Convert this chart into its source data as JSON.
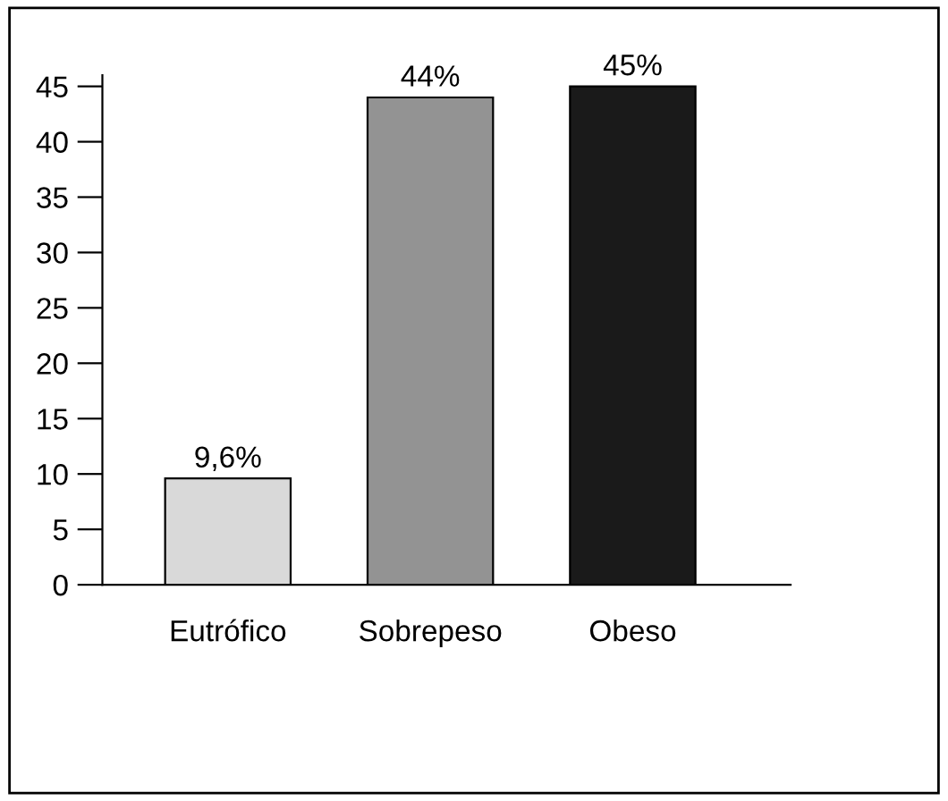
{
  "chart_data": {
    "type": "bar",
    "categories": [
      "Eutrófico",
      "Sobrepeso",
      "Obeso"
    ],
    "values": [
      9.6,
      44,
      45
    ],
    "colors": [
      "#d9d9d9",
      "#939393",
      "#1a1a1a"
    ],
    "value_labels": [
      "9,6%",
      "44%",
      "45%"
    ],
    "ylim": [
      0,
      46
    ],
    "yticks": [
      0,
      5,
      10,
      15,
      20,
      25,
      30,
      35,
      40,
      45
    ],
    "grid": false,
    "legend": false
  }
}
